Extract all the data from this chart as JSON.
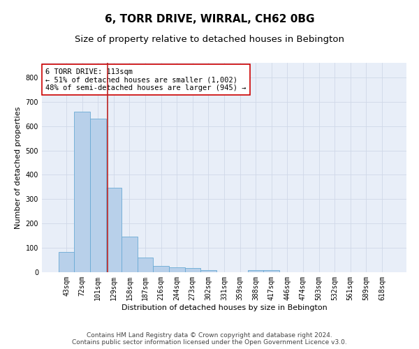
{
  "title": "6, TORR DRIVE, WIRRAL, CH62 0BG",
  "subtitle": "Size of property relative to detached houses in Bebington",
  "xlabel": "Distribution of detached houses by size in Bebington",
  "ylabel": "Number of detached properties",
  "categories": [
    "43sqm",
    "72sqm",
    "101sqm",
    "129sqm",
    "158sqm",
    "187sqm",
    "216sqm",
    "244sqm",
    "273sqm",
    "302sqm",
    "331sqm",
    "359sqm",
    "388sqm",
    "417sqm",
    "446sqm",
    "474sqm",
    "503sqm",
    "532sqm",
    "561sqm",
    "589sqm",
    "618sqm"
  ],
  "values": [
    83,
    660,
    630,
    347,
    147,
    60,
    25,
    20,
    18,
    10,
    0,
    0,
    8,
    8,
    0,
    0,
    0,
    0,
    0,
    0,
    0
  ],
  "bar_color": "#b8d0ea",
  "bar_edge_color": "#6aaad4",
  "bar_width": 1.0,
  "red_line_x": 2.62,
  "red_line_color": "#bb2222",
  "annotation_text": "6 TORR DRIVE: 113sqm\n← 51% of detached houses are smaller (1,002)\n48% of semi-detached houses are larger (945) →",
  "annotation_box_color": "white",
  "annotation_box_edge_color": "#cc0000",
  "ylim": [
    0,
    860
  ],
  "yticks": [
    0,
    100,
    200,
    300,
    400,
    500,
    600,
    700,
    800
  ],
  "bg_color": "#e8eef8",
  "grid_color": "#d0d8e8",
  "footer_text": "Contains HM Land Registry data © Crown copyright and database right 2024.\nContains public sector information licensed under the Open Government Licence v3.0.",
  "title_fontsize": 11,
  "subtitle_fontsize": 9.5,
  "xlabel_fontsize": 8,
  "ylabel_fontsize": 8,
  "tick_fontsize": 7,
  "annotation_fontsize": 7.5,
  "footer_fontsize": 6.5
}
